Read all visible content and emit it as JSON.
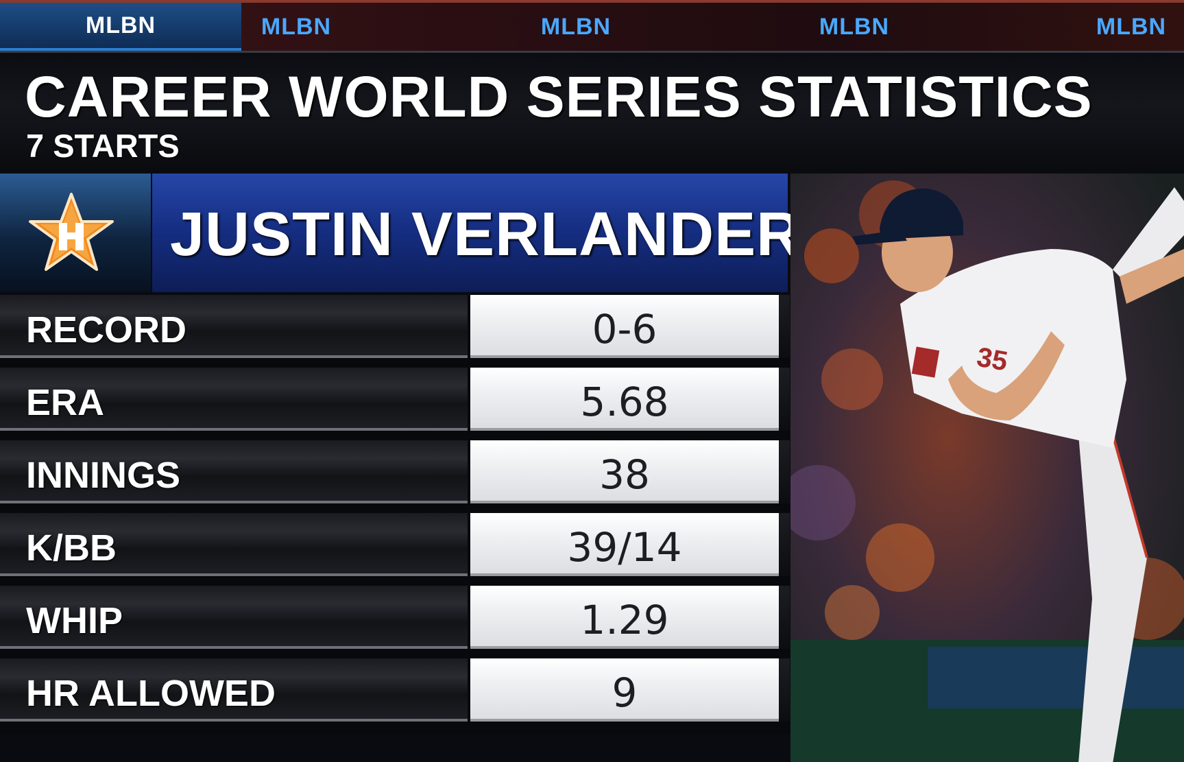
{
  "ticker": {
    "items": [
      "MLBN",
      "MLBN",
      "MLBN",
      "MLBN",
      "MLBN"
    ]
  },
  "header": {
    "title": "CAREER WORLD SERIES STATISTICS",
    "subtitle": "7 STARTS"
  },
  "player": {
    "name": "JUSTIN VERLANDER",
    "team_logo_icon": "astros-star-logo-icon",
    "jersey_number": "35"
  },
  "stats": [
    {
      "label": "RECORD",
      "value": "0-6"
    },
    {
      "label": "ERA",
      "value": "5.68"
    },
    {
      "label": "INNINGS",
      "value": "38"
    },
    {
      "label": "K/BB",
      "value": "39/14"
    },
    {
      "label": "WHIP",
      "value": "1.29"
    },
    {
      "label": "HR ALLOWED",
      "value": "9"
    }
  ],
  "colors": {
    "ticker_accent": "#4aa8ff",
    "name_bar": "#1a3590",
    "logo_orange": "#f28a21"
  }
}
